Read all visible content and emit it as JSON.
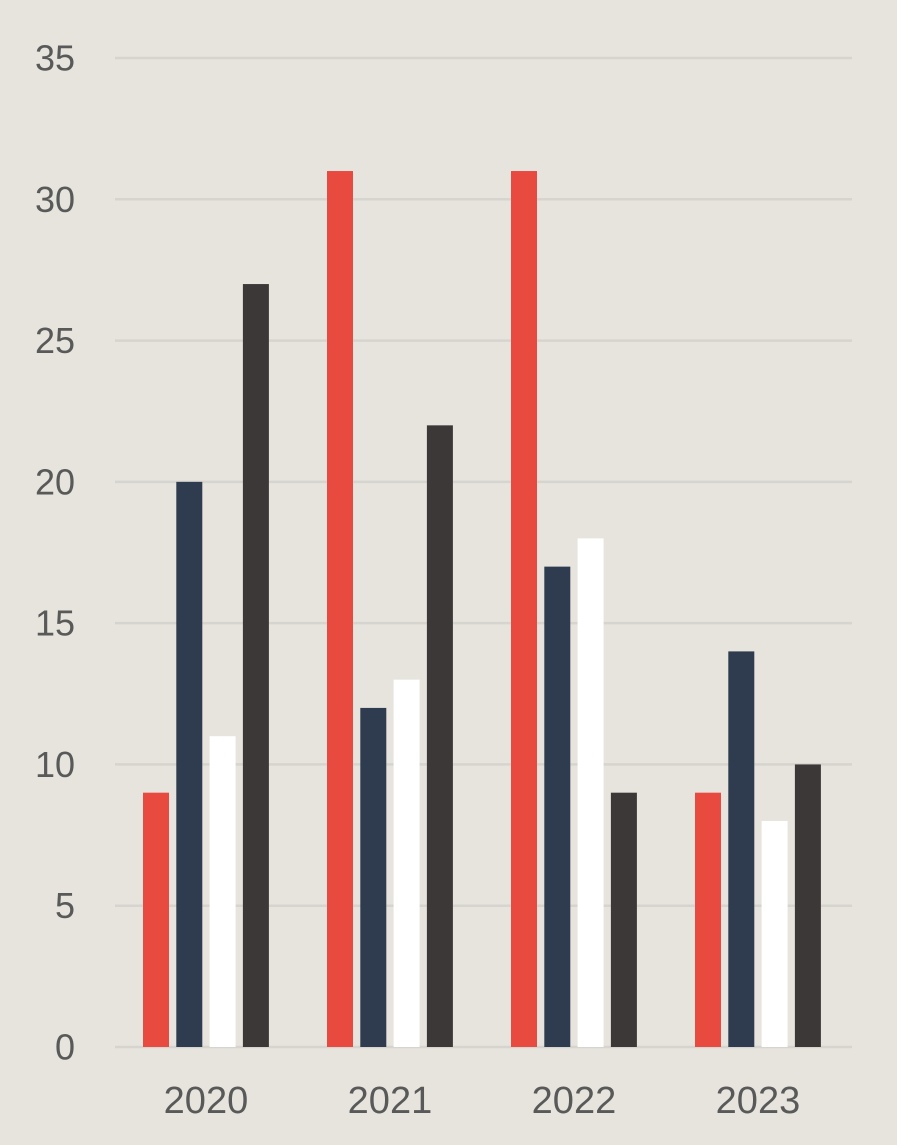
{
  "chart_data": {
    "type": "bar",
    "title": "",
    "xlabel": "",
    "ylabel": "",
    "categories": [
      "2020",
      "2021",
      "2022",
      "2023"
    ],
    "series": [
      {
        "color": "#e84a3f",
        "values": [
          9,
          31,
          31,
          9
        ]
      },
      {
        "color": "#2f3b4f",
        "values": [
          20,
          12,
          17,
          14
        ]
      },
      {
        "color": "#ffffff",
        "values": [
          11,
          13,
          18,
          8
        ]
      },
      {
        "color": "#3c3837",
        "values": [
          27,
          22,
          9,
          10
        ]
      }
    ],
    "ylim": [
      0,
      35
    ],
    "yticks": [
      0,
      5,
      10,
      15,
      20,
      25,
      30,
      35
    ],
    "grid": true,
    "legend": "none",
    "background": "#e6e4dd",
    "gridline_color": "#d6d4ce",
    "label_color": "#595959"
  }
}
